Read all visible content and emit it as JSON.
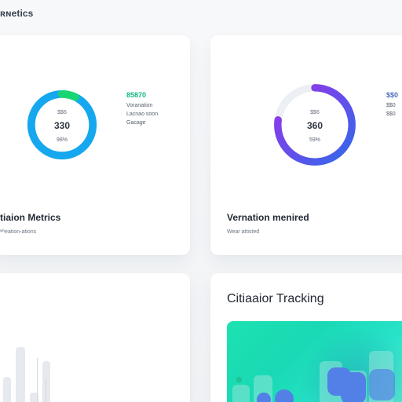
{
  "app": {
    "page_title": "ʀɴetics"
  },
  "metrics_left": {
    "center_top": "$$6",
    "center_value": "330",
    "center_percent": "98%",
    "legend_value": "85870",
    "legend_lines": [
      "Voranation",
      "Lacnao soon",
      "Gacage"
    ],
    "title": "tiaion Metrics",
    "subtitle": "ʷʰeation-ations",
    "progress": 0.91,
    "ring_color": "#15a8ee",
    "accent_color": "#18d673"
  },
  "metrics_right": {
    "center_top": "$$6",
    "center_value": "360",
    "center_percent": "59%",
    "legend_value": "$$0",
    "legend_lines": [
      "$$0",
      "$$0"
    ],
    "title": "Vernation menired",
    "subtitle": "Wear attisted",
    "progress": 0.77,
    "ring_start_color": "#3169ea",
    "ring_end_color": "#9b32ea"
  },
  "tracking": {
    "title": "Citiaaior Tracking"
  },
  "colors": {
    "teal": "#19d9b4",
    "blue": "#5280e6",
    "green": "#1ec394"
  }
}
